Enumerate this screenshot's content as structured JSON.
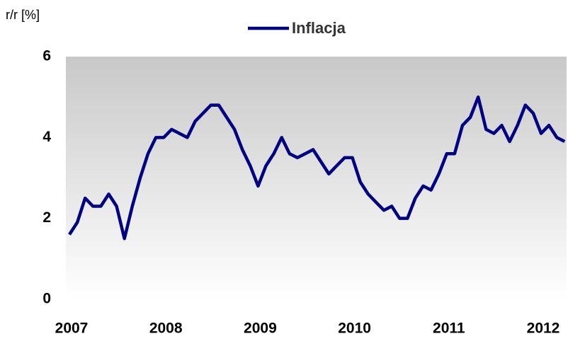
{
  "chart_data": {
    "type": "line",
    "ylabel": "r/r [%]",
    "categories": [
      "2007",
      null,
      null,
      null,
      null,
      null,
      null,
      null,
      null,
      null,
      null,
      null,
      "2008",
      null,
      null,
      null,
      null,
      null,
      null,
      null,
      null,
      null,
      null,
      null,
      "2009",
      null,
      null,
      null,
      null,
      null,
      null,
      null,
      null,
      null,
      null,
      null,
      "2010",
      null,
      null,
      null,
      null,
      null,
      null,
      null,
      null,
      null,
      null,
      null,
      "2011",
      null,
      null,
      null,
      null,
      null,
      null,
      null,
      null,
      null,
      null,
      null,
      "2012",
      null,
      null,
      null
    ],
    "series": [
      {
        "name": "Inflacja",
        "color": "#000080",
        "values": [
          1.6,
          1.9,
          2.5,
          2.3,
          2.3,
          2.6,
          2.3,
          1.5,
          2.3,
          3.0,
          3.6,
          4.0,
          4.0,
          4.2,
          4.1,
          4.0,
          4.4,
          4.6,
          4.8,
          4.8,
          4.5,
          4.2,
          3.7,
          3.3,
          2.8,
          3.3,
          3.6,
          4.0,
          3.6,
          3.5,
          3.6,
          3.7,
          3.4,
          3.1,
          3.3,
          3.5,
          3.5,
          2.9,
          2.6,
          2.4,
          2.2,
          2.3,
          2.0,
          2.0,
          2.5,
          2.8,
          2.7,
          3.1,
          3.6,
          3.6,
          4.3,
          4.5,
          5.0,
          4.2,
          4.1,
          4.3,
          3.9,
          4.3,
          4.8,
          4.6,
          4.1,
          4.3,
          4.0,
          3.9
        ]
      }
    ],
    "ylim": [
      0,
      6
    ],
    "yticks": [
      0,
      2,
      4,
      6
    ],
    "grid": false,
    "legend": "top"
  }
}
